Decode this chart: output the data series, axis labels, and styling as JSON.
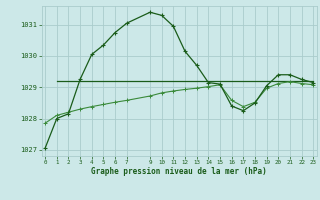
{
  "title": "Graphe pression niveau de la mer (hPa)",
  "background_color": "#cce8e8",
  "grid_color": "#aacccc",
  "line_color_dark": "#1a5c1a",
  "line_color_mid": "#3a8a3a",
  "xlim": [
    -0.3,
    23.3
  ],
  "ylim": [
    1026.8,
    1031.6
  ],
  "yticks": [
    1027,
    1028,
    1029,
    1030,
    1031
  ],
  "xticks": [
    0,
    1,
    2,
    3,
    4,
    5,
    6,
    7,
    9,
    10,
    11,
    12,
    13,
    14,
    15,
    16,
    17,
    18,
    19,
    20,
    21,
    22,
    23
  ],
  "series1_x": [
    0,
    1,
    2,
    3,
    4,
    5,
    6,
    7,
    9,
    10,
    11,
    12,
    13,
    14,
    15,
    16,
    17,
    18,
    19,
    20,
    21,
    22,
    23
  ],
  "series1_y": [
    1027.05,
    1028.0,
    1028.15,
    1029.25,
    1030.05,
    1030.35,
    1030.75,
    1031.05,
    1031.4,
    1031.3,
    1030.95,
    1030.15,
    1029.7,
    1029.15,
    1029.1,
    1028.4,
    1028.25,
    1028.5,
    1029.05,
    1029.4,
    1029.4,
    1029.25,
    1029.15
  ],
  "series2_x": [
    0,
    1,
    2,
    3,
    4,
    5,
    6,
    7,
    9,
    10,
    11,
    12,
    13,
    14,
    15,
    16,
    17,
    18,
    19,
    20,
    21,
    22,
    23
  ],
  "series2_y": [
    1027.85,
    1028.1,
    1028.2,
    1028.3,
    1028.38,
    1028.45,
    1028.52,
    1028.58,
    1028.72,
    1028.82,
    1028.88,
    1028.93,
    1028.97,
    1029.02,
    1029.08,
    1028.58,
    1028.38,
    1028.52,
    1028.97,
    1029.12,
    1029.18,
    1029.12,
    1029.08
  ],
  "series3_x": [
    1,
    23
  ],
  "series3_y": [
    1029.2,
    1029.2
  ]
}
